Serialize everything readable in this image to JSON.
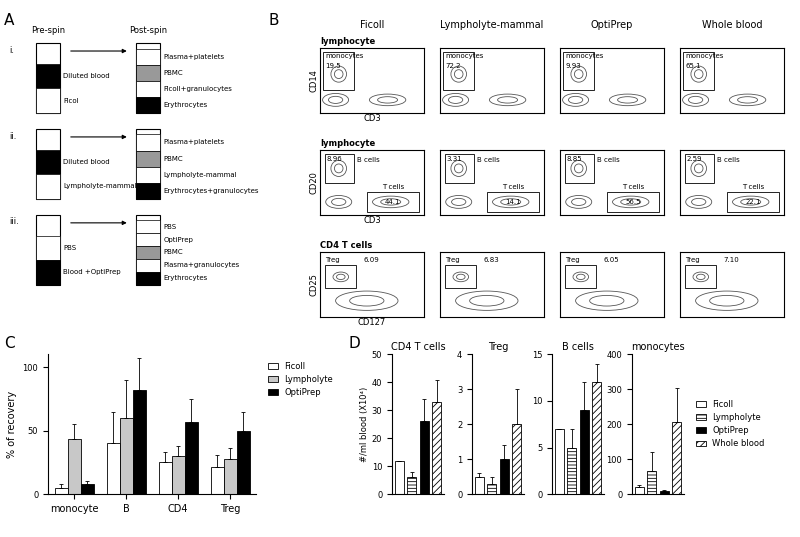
{
  "panel_labels": [
    "A",
    "B",
    "C",
    "D"
  ],
  "diagram": {
    "pre_header": "Pre-spin",
    "post_header": "Post-spin",
    "rows": [
      {
        "label": "i.",
        "pre": [
          {
            "label": "Diluted blood",
            "color": "#000000"
          },
          {
            "label": "Ficol",
            "color": "#ffffff"
          }
        ],
        "post": [
          {
            "label": "Plasma+platelets",
            "color": "#ffffff"
          },
          {
            "label": "PBMC",
            "color": "#999999"
          },
          {
            "label": "Ficoll+granulocytes",
            "color": "#ffffff"
          },
          {
            "label": "Erythrocytes",
            "color": "#000000"
          }
        ]
      },
      {
        "label": "ii.",
        "pre": [
          {
            "label": "Diluted blood",
            "color": "#000000"
          },
          {
            "label": "Lympholyte-mammal",
            "color": "#ffffff"
          }
        ],
        "post": [
          {
            "label": "Plasma+platelets",
            "color": "#ffffff"
          },
          {
            "label": "PBMC",
            "color": "#999999"
          },
          {
            "label": "Lympholyte-mammal",
            "color": "#ffffff"
          },
          {
            "label": "Erythrocytes+granulocytes",
            "color": "#000000"
          }
        ]
      },
      {
        "label": "iii.",
        "pre": [
          {
            "label": "PBS",
            "color": "#ffffff"
          },
          {
            "label": "Blood +OptiPrep",
            "color": "#000000"
          }
        ],
        "post": [
          {
            "label": "PBS",
            "color": "#ffffff"
          },
          {
            "label": "OptiPrep",
            "color": "#ffffff"
          },
          {
            "label": "PBMC",
            "color": "#999999"
          },
          {
            "label": "Plasma+granulocytes",
            "color": "#ffffff"
          },
          {
            "label": "Erythrocytes",
            "color": "#000000"
          }
        ]
      }
    ]
  },
  "flow": {
    "columns": [
      "Ficoll",
      "Lympholyte-mammal",
      "OptiPrep",
      "Whole blood"
    ],
    "rows": [
      {
        "title": "lymphocyte",
        "x_label": "CD3",
        "y_label": "CD14",
        "gates": [
          {
            "name": "monocytes",
            "values": [
              "19.5",
              "72.2",
              "9.93",
              "65.1"
            ]
          }
        ]
      },
      {
        "title": "lymphocyte",
        "x_label": "CD3",
        "y_label": "CD20",
        "gates": [
          {
            "name": "B cells",
            "values": [
              "8.96",
              "3.31",
              "8.85",
              "2.59"
            ]
          },
          {
            "name": "T cells",
            "values": [
              "44.1",
              "14.1",
              "56.5",
              "22.1"
            ]
          }
        ]
      },
      {
        "title": "CD4 T cells",
        "x_label": "CD127",
        "y_label": "CD25",
        "gates": [
          {
            "name": "Treg",
            "values": [
              "6.09",
              "6.83",
              "6.05",
              "7.10"
            ]
          }
        ]
      }
    ]
  },
  "chart_data": [
    {
      "type": "bar",
      "categories": [
        "monocyte",
        "B",
        "CD4",
        "Treg"
      ],
      "y_label": "% of recovery",
      "ylim": [
        0,
        110
      ],
      "yticks": [
        0,
        50,
        100
      ],
      "legend": "right",
      "series": [
        {
          "name": "Ficoll",
          "color": "#ffffff",
          "values": [
            5,
            40,
            25,
            21
          ],
          "errors": [
            3,
            25,
            8,
            10
          ]
        },
        {
          "name": "Lympholyte",
          "color": "#c8c8c8",
          "values": [
            43,
            60,
            30,
            28
          ],
          "errors": [
            12,
            30,
            8,
            8
          ]
        },
        {
          "name": "OptiPrep",
          "color": "#000000",
          "values": [
            8,
            82,
            57,
            50
          ],
          "errors": [
            2,
            25,
            18,
            15
          ]
        }
      ]
    },
    {
      "type": "bar",
      "title": "CD4 T cells",
      "y_label": "#/ml blood (X10⁴)",
      "tick_labels": "y",
      "ylim": [
        0,
        50
      ],
      "yticks": [
        0,
        10,
        20,
        30,
        40,
        50
      ],
      "series": [
        {
          "color": "#ffffff",
          "values": [
            12
          ],
          "errors": [
            0
          ]
        },
        {
          "color": "#ffffff",
          "values": [
            6
          ],
          "errors": [
            2
          ]
        },
        {
          "color": "#000000",
          "values": [
            26
          ],
          "errors": [
            8
          ]
        },
        {
          "color": "#ffffff",
          "values": [
            33
          ],
          "errors": [
            8
          ]
        }
      ]
    },
    {
      "type": "bar",
      "title": "Treg",
      "tick_labels": "y",
      "ylim": [
        0,
        4
      ],
      "yticks": [
        0,
        1,
        2,
        3,
        4
      ],
      "series": [
        {
          "color": "#ffffff",
          "values": [
            0.5
          ],
          "errors": [
            0.1
          ]
        },
        {
          "color": "#ffffff",
          "values": [
            0.3
          ],
          "errors": [
            0.2
          ]
        },
        {
          "color": "#000000",
          "values": [
            1.0
          ],
          "errors": [
            0.4
          ]
        },
        {
          "color": "#ffffff",
          "values": [
            2.0
          ],
          "errors": [
            1.0
          ]
        }
      ]
    },
    {
      "type": "bar",
      "title": "B cells",
      "tick_labels": "y",
      "ylim": [
        0,
        15
      ],
      "yticks": [
        0,
        5,
        10,
        15
      ],
      "series": [
        {
          "color": "#ffffff",
          "values": [
            7
          ],
          "errors": [
            0
          ]
        },
        {
          "color": "#ffffff",
          "values": [
            5
          ],
          "errors": [
            2
          ]
        },
        {
          "color": "#000000",
          "values": [
            9
          ],
          "errors": [
            3
          ]
        },
        {
          "color": "#ffffff",
          "values": [
            12
          ],
          "errors": [
            2
          ]
        }
      ]
    },
    {
      "type": "bar",
      "title": "monocytes",
      "tick_labels": "y",
      "legend": "right",
      "ylim": [
        0,
        400
      ],
      "yticks": [
        0,
        100,
        200,
        300,
        400
      ],
      "series": [
        {
          "name": "Ficoll",
          "color": "#ffffff",
          "values": [
            20
          ],
          "errors": [
            5
          ]
        },
        {
          "name": "Lympholyte",
          "color": "#ffffff",
          "values": [
            65
          ],
          "errors": [
            55
          ]
        },
        {
          "name": "OptiPrep",
          "color": "#000000",
          "values": [
            10
          ],
          "errors": [
            3
          ]
        },
        {
          "name": "Whole blood",
          "color": "#ffffff",
          "values": [
            205
          ],
          "errors": [
            100
          ]
        }
      ]
    }
  ]
}
